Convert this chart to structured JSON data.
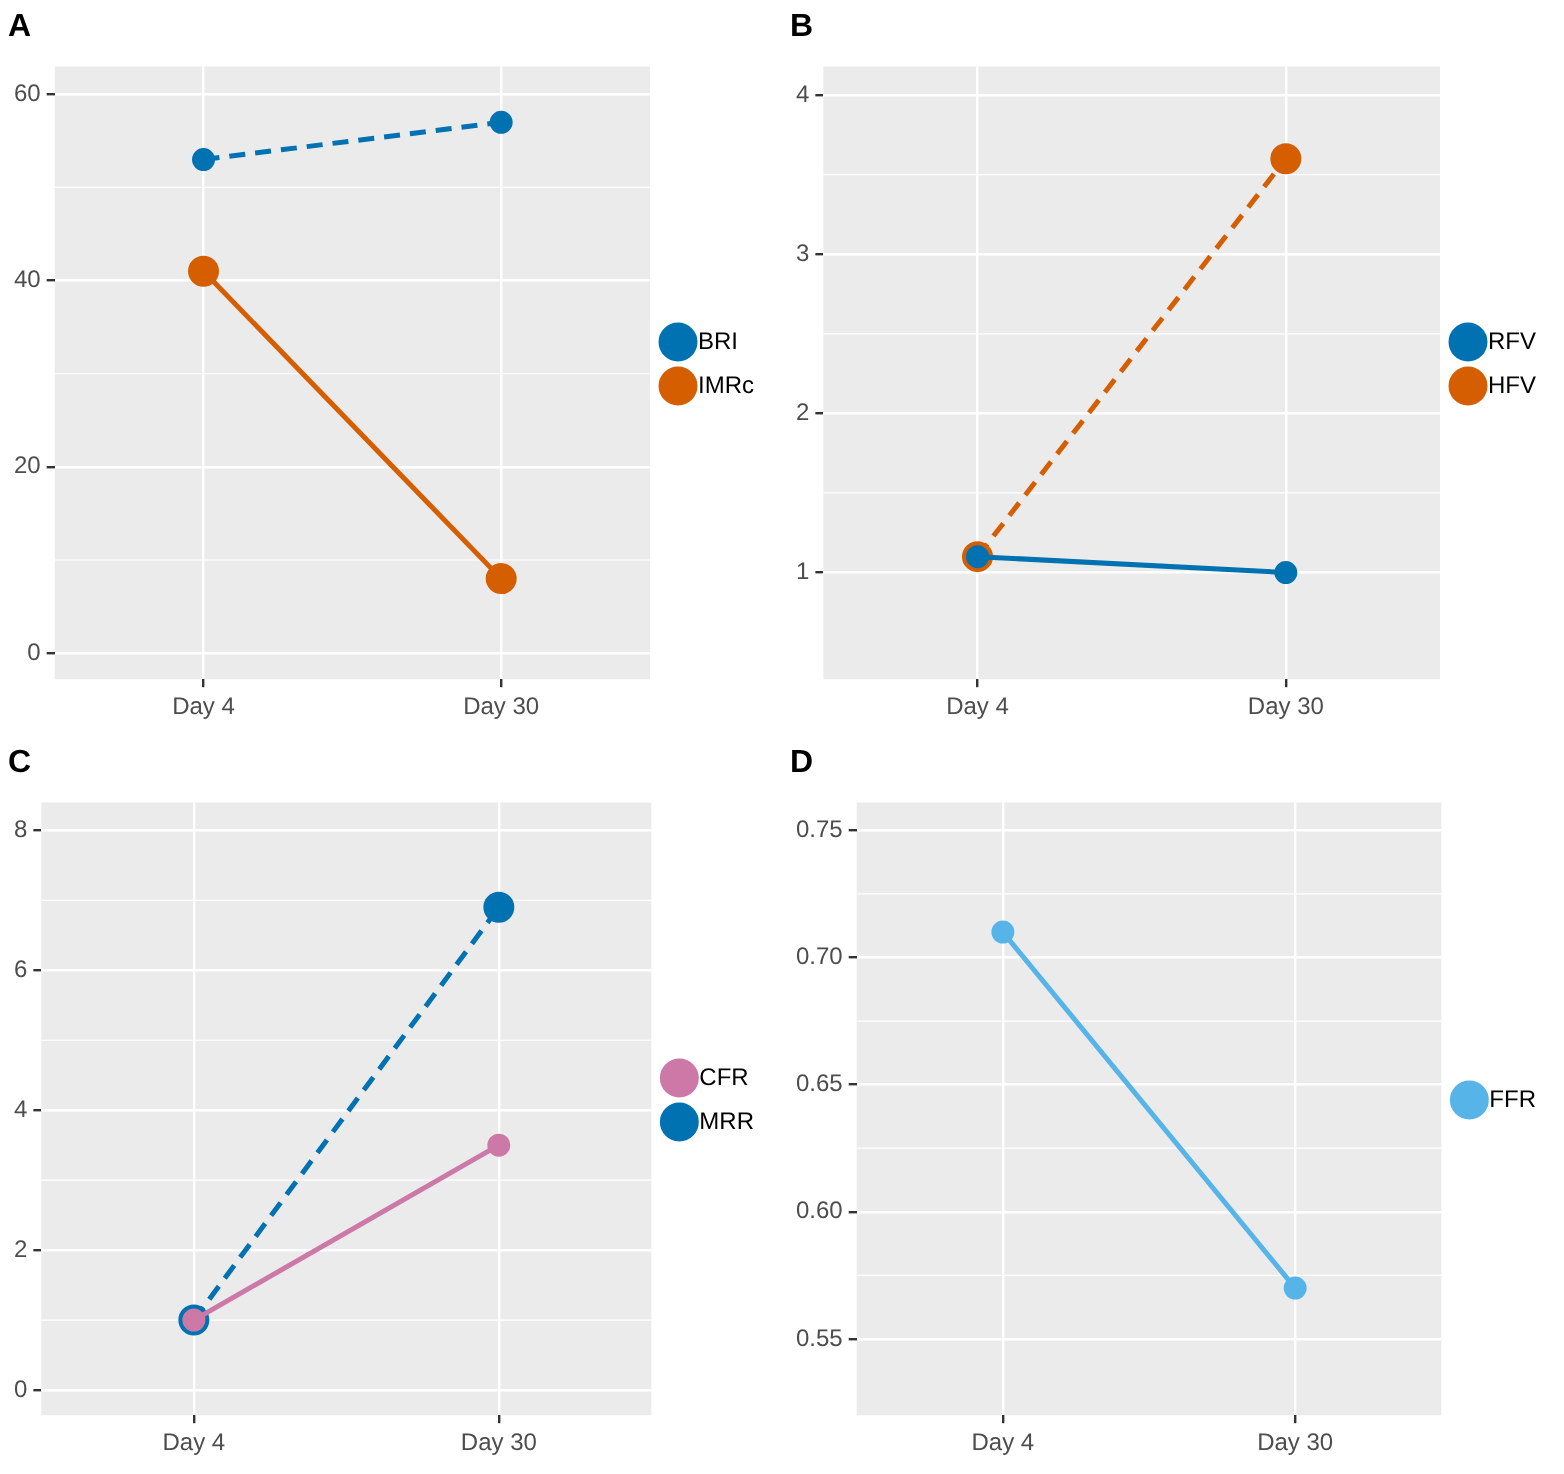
{
  "chart_data": [
    {
      "type": "line",
      "title": "A",
      "categories": [
        "Day 4",
        "Day 30"
      ],
      "ylim": [
        -2.8,
        63
      ],
      "yticks": [
        0,
        20,
        40,
        60
      ],
      "grid": true,
      "legend": "right",
      "marker": "circle",
      "series": [
        {
          "name": "BRI",
          "color": "#0072b2",
          "values": [
            53,
            57
          ],
          "line_style": "dashed"
        },
        {
          "name": "IMRc",
          "color": "#d55e00",
          "values": [
            41,
            8
          ],
          "line_style": "solid"
        }
      ]
    },
    {
      "type": "line",
      "title": "B",
      "categories": [
        "Day 4",
        "Day 30"
      ],
      "ylim": [
        0.33,
        4.18
      ],
      "yticks": [
        1,
        2,
        3,
        4
      ],
      "grid": true,
      "legend": "right",
      "marker": "circle",
      "series": [
        {
          "name": "RFV",
          "color": "#0072b2",
          "values": [
            1.1,
            1.0
          ],
          "line_style": "solid"
        },
        {
          "name": "HFV",
          "color": "#d55e00",
          "values": [
            1.1,
            3.6
          ],
          "line_style": "dashed"
        }
      ]
    },
    {
      "type": "line",
      "title": "C",
      "categories": [
        "Day 4",
        "Day 30"
      ],
      "ylim": [
        -0.36,
        8.4
      ],
      "yticks": [
        0,
        2,
        4,
        6,
        8
      ],
      "grid": true,
      "legend": "right",
      "marker": "circle",
      "series": [
        {
          "name": "CFR",
          "color": "#cc79a7",
          "values": [
            1,
            3.5
          ],
          "line_style": "solid"
        },
        {
          "name": "MRR",
          "color": "#0072b2",
          "values": [
            1,
            6.9
          ],
          "line_style": "dashed"
        }
      ]
    },
    {
      "type": "line",
      "title": "D",
      "categories": [
        "Day 4",
        "Day 30"
      ],
      "ylim": [
        0.52,
        0.761
      ],
      "yticks": [
        {
          "value": 0.55,
          "label": "0.55"
        },
        {
          "value": 0.6,
          "label": "0.60"
        },
        {
          "value": 0.65,
          "label": "0.65"
        },
        {
          "value": 0.7,
          "label": "0.70"
        },
        {
          "value": 0.75,
          "label": "0.75"
        }
      ],
      "grid": true,
      "legend": "right",
      "marker": "circle",
      "series": [
        {
          "name": "FFR",
          "color": "#56b4e9",
          "values": [
            0.71,
            0.57
          ],
          "line_style": "solid"
        }
      ]
    }
  ]
}
